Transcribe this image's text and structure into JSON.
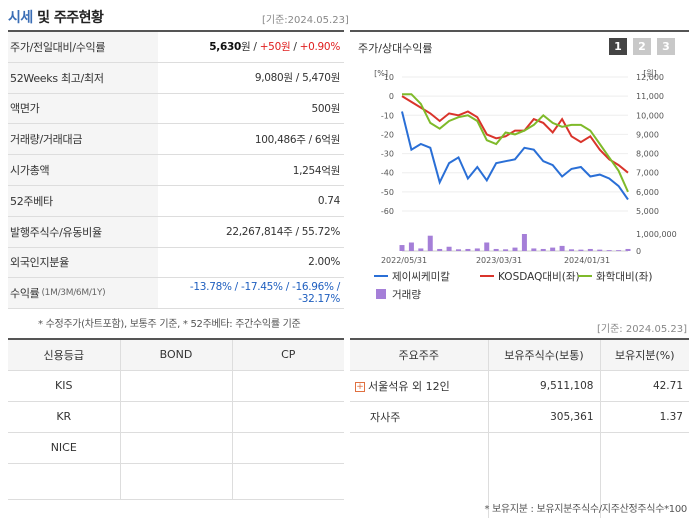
{
  "header": {
    "title_main": "시세",
    "title_rest": " 및 주주현황",
    "date": "[기준:2024.05.23]"
  },
  "price_table": [
    {
      "label": "주가/전일대비/수익률",
      "value_parts": [
        {
          "t": "5,630",
          "c": "bold"
        },
        {
          "t": "원 / ",
          "c": ""
        },
        {
          "t": "+50원",
          "c": "up"
        },
        {
          "t": " / ",
          "c": ""
        },
        {
          "t": "+0.90%",
          "c": "up"
        }
      ]
    },
    {
      "label": "52Weeks 최고/최저",
      "value_parts": [
        {
          "t": "9,080원 / 5,470원",
          "c": ""
        }
      ]
    },
    {
      "label": "액면가",
      "value_parts": [
        {
          "t": "500원",
          "c": ""
        }
      ]
    },
    {
      "label": "거래량/거래대금",
      "value_parts": [
        {
          "t": "100,486주 / 6억원",
          "c": ""
        }
      ]
    },
    {
      "label": "시가총액",
      "value_parts": [
        {
          "t": "1,254억원",
          "c": ""
        }
      ]
    },
    {
      "label": "52주베타",
      "value_parts": [
        {
          "t": "0.74",
          "c": ""
        }
      ]
    },
    {
      "label": "발행주식수/유동비율",
      "value_parts": [
        {
          "t": "22,267,814주 / 55.72%",
          "c": ""
        }
      ]
    },
    {
      "label": "외국인지분율",
      "value_parts": [
        {
          "t": "2.00%",
          "c": ""
        }
      ]
    },
    {
      "label": "수익률",
      "label_small": "(1M/3M/6M/1Y)",
      "value_parts": [
        {
          "t": "-13.78% / -17.45% / -16.96% / -32.17%",
          "c": "down"
        }
      ]
    }
  ],
  "footnote1": "* 수정주가(차트포함), 보통주 기준, * 52주베타: 주간수익률 기준",
  "chart": {
    "title": "주가/상대수익률",
    "pages": [
      "1",
      "2",
      "3"
    ],
    "active_page": "1"
  },
  "chart_data": {
    "type": "line",
    "left_axis_unit": "[%]",
    "right_axis_unit": "[원]",
    "left_ticks": [
      10,
      0,
      -10,
      -20,
      -30,
      -40,
      -50,
      -60
    ],
    "right_ticks": [
      "12,000",
      "11,000",
      "10,000",
      "9,000",
      "8,000",
      "7,000",
      "6,000",
      "5,000"
    ],
    "volume_ticks": [
      "1,000,000",
      "0"
    ],
    "x_labels": [
      "2022/05/31",
      "2023/03/31",
      "2024/01/31"
    ],
    "ylim_left": [
      -60,
      10
    ],
    "series": [
      {
        "name": "제이씨케미칼",
        "color": "#2a6fd6",
        "values": [
          -8,
          -28,
          -25,
          -27,
          -45,
          -35,
          -32,
          -43,
          -37,
          -44,
          -35,
          -34,
          -33,
          -27,
          -28,
          -34,
          -36,
          -42,
          -38,
          -37,
          -42,
          -41,
          -43,
          -47,
          -54
        ]
      },
      {
        "name": "KOSDAQ대비(좌)",
        "color": "#d9342b",
        "values": [
          0,
          -3,
          -6,
          -9,
          -13,
          -9,
          -10,
          -8,
          -11,
          -20,
          -22,
          -21,
          -18,
          -18,
          -12,
          -14,
          -19,
          -12,
          -21,
          -24,
          -21,
          -28,
          -33,
          -36,
          -40
        ]
      },
      {
        "name": "화학대비(좌)",
        "color": "#7fba2a",
        "values": [
          1,
          1,
          -4,
          -14,
          -17,
          -13,
          -11,
          -10,
          -13,
          -23,
          -25,
          -19,
          -20,
          -18,
          -15,
          -10,
          -14,
          -16,
          -15,
          -15,
          -18,
          -25,
          -32,
          -39,
          -50
        ]
      }
    ],
    "volume": {
      "name": "거래량",
      "color": "#a57fd8",
      "values": [
        0.35,
        0.5,
        0.15,
        0.9,
        0.12,
        0.25,
        0.1,
        0.12,
        0.15,
        0.5,
        0.12,
        0.1,
        0.2,
        1.0,
        0.15,
        0.12,
        0.2,
        0.3,
        0.1,
        0.08,
        0.12,
        0.08,
        0.05,
        0.05,
        0.12
      ]
    }
  },
  "date2": "[기준: 2024.05.23]",
  "credit_table": {
    "headers": [
      "신용등급",
      "BOND",
      "CP"
    ],
    "rows": [
      [
        "KIS",
        "",
        ""
      ],
      [
        "KR",
        "",
        ""
      ],
      [
        "NICE",
        "",
        ""
      ]
    ]
  },
  "holder_table": {
    "headers": [
      "주요주주",
      "보유주식수(보통)",
      "보유지분(%)"
    ],
    "rows": [
      {
        "name": "서울석유 외 12인",
        "shares": "9,511,108",
        "pct": "42.71",
        "expandable": true
      },
      {
        "name": "자사주",
        "shares": "305,361",
        "pct": "1.37",
        "expandable": false
      }
    ]
  },
  "footnote2": "* 보유지분 : 보유지분주식수/지주산정주식수*100"
}
